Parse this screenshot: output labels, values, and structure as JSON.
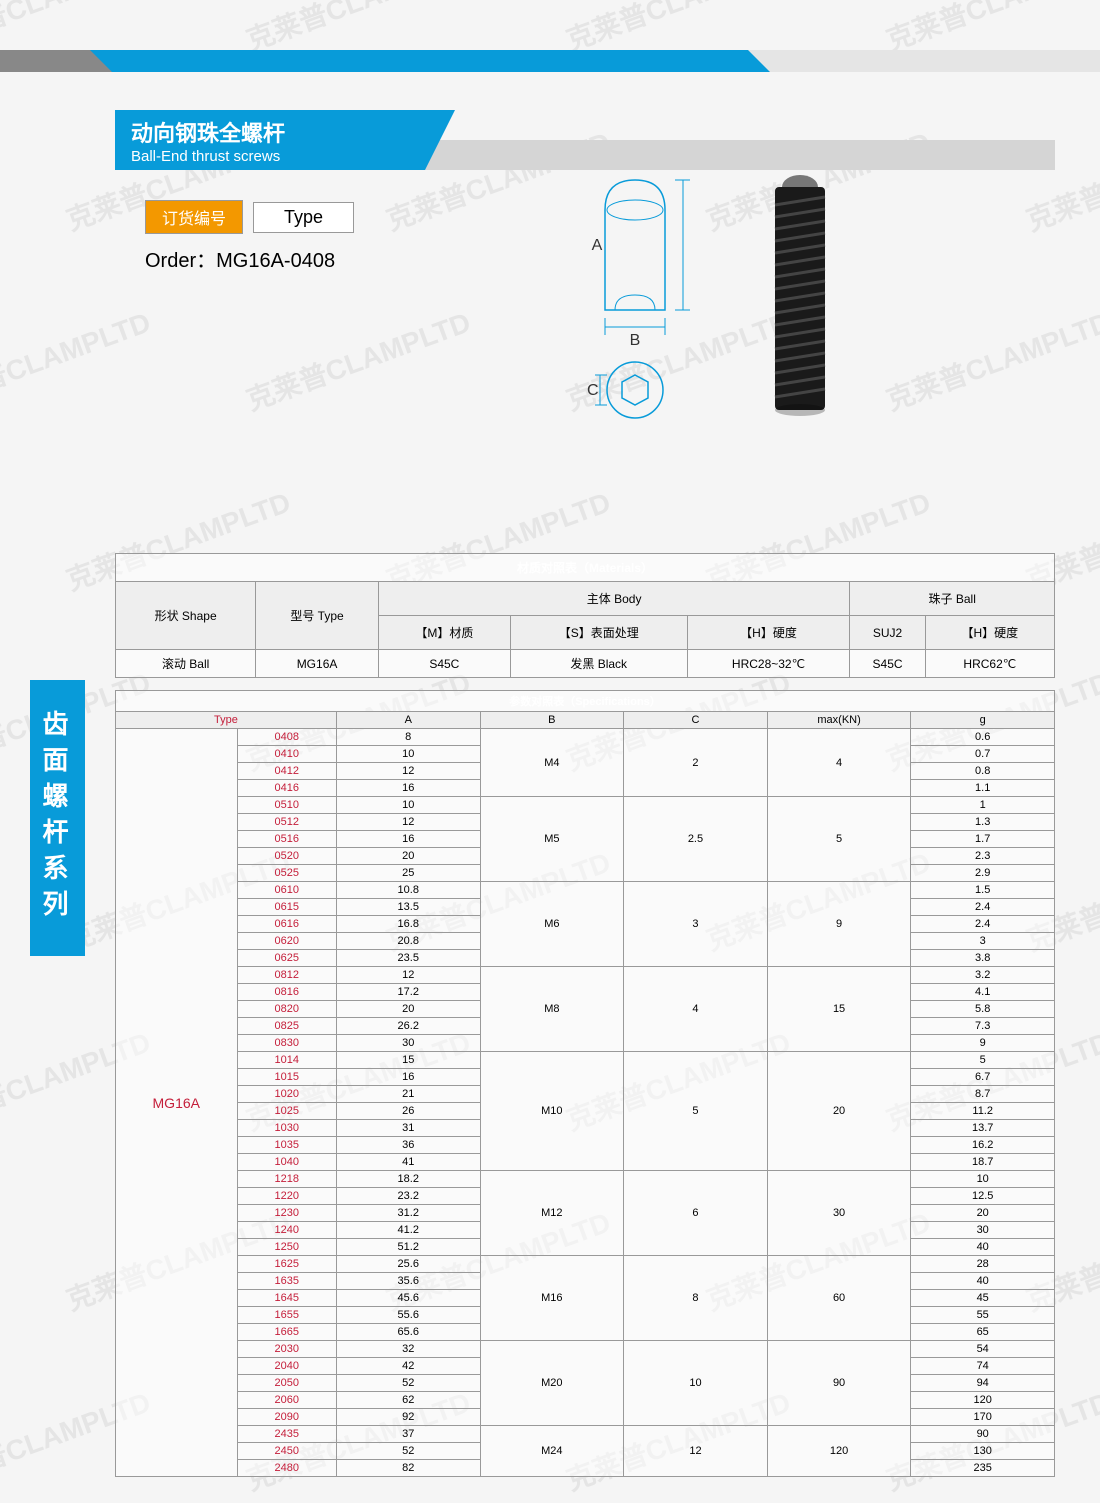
{
  "title": {
    "zh": "动向钢珠全螺杆",
    "en": "Ball-End thrust screws"
  },
  "order": {
    "badge": "订货编号",
    "type_label": "Type",
    "prefix": "Order：",
    "code": "MG16A-0408"
  },
  "side_label": "齿面螺杆系列",
  "watermark_text": "克莱普CLAMPLTD",
  "materials": {
    "header": "材质对照表（Materials）",
    "cols": {
      "shape": "形状 Shape",
      "type": "型号 Type",
      "body": "主体 Body",
      "ball": "珠子 Ball",
      "m": "【M】材质",
      "s": "【S】表面处理",
      "h": "【H】硬度",
      "suj2": "SUJ2",
      "h2": "【H】硬度"
    },
    "row": {
      "shape": "滚动 Ball",
      "type": "MG16A",
      "m": "S45C",
      "s": "发黑 Black",
      "h": "HRC28~32℃",
      "suj2": "S45C",
      "h2": "HRC62℃"
    }
  },
  "spec": {
    "header": "参数对照表（Specifications）",
    "cols": {
      "type": "Type",
      "a": "A",
      "b": "B",
      "c": "C",
      "max": "max(KN)",
      "g": "g"
    },
    "type_main": "MG16A",
    "groups": [
      {
        "b": "M4",
        "c": "2",
        "max": "4",
        "rows": [
          [
            "0408",
            "8",
            "0.6"
          ],
          [
            "0410",
            "10",
            "0.7"
          ],
          [
            "0412",
            "12",
            "0.8"
          ],
          [
            "0416",
            "16",
            "1.1"
          ]
        ]
      },
      {
        "b": "M5",
        "c": "2.5",
        "max": "5",
        "rows": [
          [
            "0510",
            "10",
            "1"
          ],
          [
            "0512",
            "12",
            "1.3"
          ],
          [
            "0516",
            "16",
            "1.7"
          ],
          [
            "0520",
            "20",
            "2.3"
          ],
          [
            "0525",
            "25",
            "2.9"
          ]
        ]
      },
      {
        "b": "M6",
        "c": "3",
        "max": "9",
        "rows": [
          [
            "0610",
            "10.8",
            "1.5"
          ],
          [
            "0615",
            "13.5",
            "2.4"
          ],
          [
            "0616",
            "16.8",
            "2.4"
          ],
          [
            "0620",
            "20.8",
            "3"
          ],
          [
            "0625",
            "23.5",
            "3.8"
          ]
        ]
      },
      {
        "b": "M8",
        "c": "4",
        "max": "15",
        "rows": [
          [
            "0812",
            "12",
            "3.2"
          ],
          [
            "0816",
            "17.2",
            "4.1"
          ],
          [
            "0820",
            "20",
            "5.8"
          ],
          [
            "0825",
            "26.2",
            "7.3"
          ],
          [
            "0830",
            "30",
            "9"
          ]
        ]
      },
      {
        "b": "M10",
        "c": "5",
        "max": "20",
        "rows": [
          [
            "1014",
            "15",
            "5"
          ],
          [
            "1015",
            "16",
            "6.7"
          ],
          [
            "1020",
            "21",
            "8.7"
          ],
          [
            "1025",
            "26",
            "11.2"
          ],
          [
            "1030",
            "31",
            "13.7"
          ],
          [
            "1035",
            "36",
            "16.2"
          ],
          [
            "1040",
            "41",
            "18.7"
          ]
        ]
      },
      {
        "b": "M12",
        "c": "6",
        "max": "30",
        "rows": [
          [
            "1218",
            "18.2",
            "10"
          ],
          [
            "1220",
            "23.2",
            "12.5"
          ],
          [
            "1230",
            "31.2",
            "20"
          ],
          [
            "1240",
            "41.2",
            "30"
          ],
          [
            "1250",
            "51.2",
            "40"
          ]
        ]
      },
      {
        "b": "M16",
        "c": "8",
        "max": "60",
        "rows": [
          [
            "1625",
            "25.6",
            "28"
          ],
          [
            "1635",
            "35.6",
            "40"
          ],
          [
            "1645",
            "45.6",
            "45"
          ],
          [
            "1655",
            "55.6",
            "55"
          ],
          [
            "1665",
            "65.6",
            "65"
          ]
        ]
      },
      {
        "b": "M20",
        "c": "10",
        "max": "90",
        "rows": [
          [
            "2030",
            "32",
            "54"
          ],
          [
            "2040",
            "42",
            "74"
          ],
          [
            "2050",
            "52",
            "94"
          ],
          [
            "2060",
            "62",
            "120"
          ],
          [
            "2090",
            "92",
            "170"
          ]
        ]
      },
      {
        "b": "M24",
        "c": "12",
        "max": "120",
        "rows": [
          [
            "2435",
            "37",
            "90"
          ],
          [
            "2450",
            "52",
            "130"
          ],
          [
            "2480",
            "82",
            "235"
          ]
        ]
      }
    ]
  },
  "colors": {
    "primary": "#089bd9",
    "accent": "#f39800",
    "red": "#c41e3a",
    "border": "#999"
  }
}
